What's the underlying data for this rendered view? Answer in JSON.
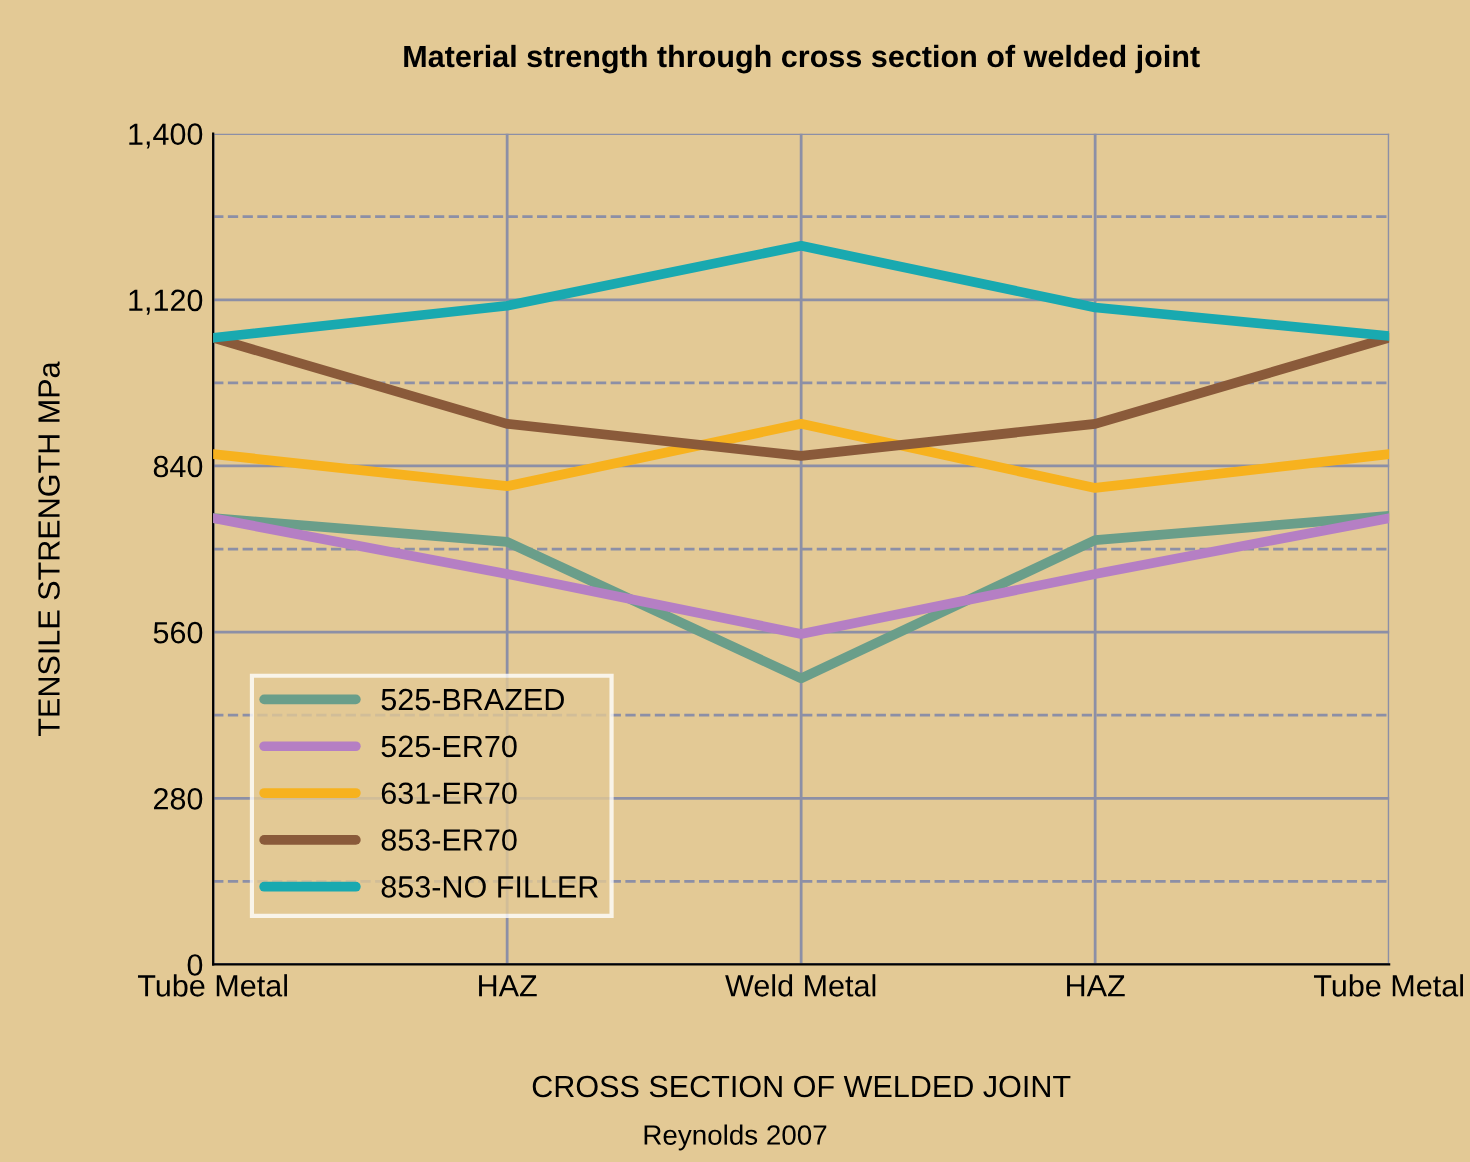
{
  "chart_data": {
    "type": "line",
    "title": "Material strength through cross section of welded joint",
    "xlabel": "CROSS SECTION OF WELDED JOINT",
    "ylabel": "TENSILE STRENGTH MPa",
    "annotations": [
      "Reynolds 2007"
    ],
    "categories": [
      "Tube Metal",
      "HAZ",
      "Weld Metal",
      "HAZ",
      "Tube Metal"
    ],
    "series": [
      {
        "name": "525-BRAZED",
        "color": "#6a9e8a",
        "values": [
          752,
          712,
          482,
          715,
          756
        ]
      },
      {
        "name": "525-ER70",
        "color": "#b57fc4",
        "values": [
          752,
          658,
          557,
          658,
          752
        ]
      },
      {
        "name": "631-ER70",
        "color": "#f7b21e",
        "values": [
          860,
          806,
          911,
          803,
          860
        ]
      },
      {
        "name": "853-ER70",
        "color": "#8a5a3a",
        "values": [
          1056,
          911,
          857,
          911,
          1056
        ]
      },
      {
        "name": "853-NO FILLER",
        "color": "#19a9b0",
        "values": [
          1056,
          1110,
          1211,
          1107,
          1059
        ]
      }
    ],
    "ylim": [
      0,
      1400
    ],
    "yticks": [
      0,
      {
        "value": 140,
        "label": null
      },
      280,
      {
        "value": 420,
        "label": null
      },
      560,
      {
        "value": 700,
        "label": null
      },
      840,
      {
        "value": 980,
        "label": null
      },
      {
        "value": 1120,
        "label": "1,120"
      },
      {
        "value": 1260,
        "label": null
      },
      {
        "value": 1400,
        "label": "1,400"
      }
    ],
    "grid": true,
    "legend": "bottom left",
    "marker": "none",
    "line_style": "solid"
  }
}
